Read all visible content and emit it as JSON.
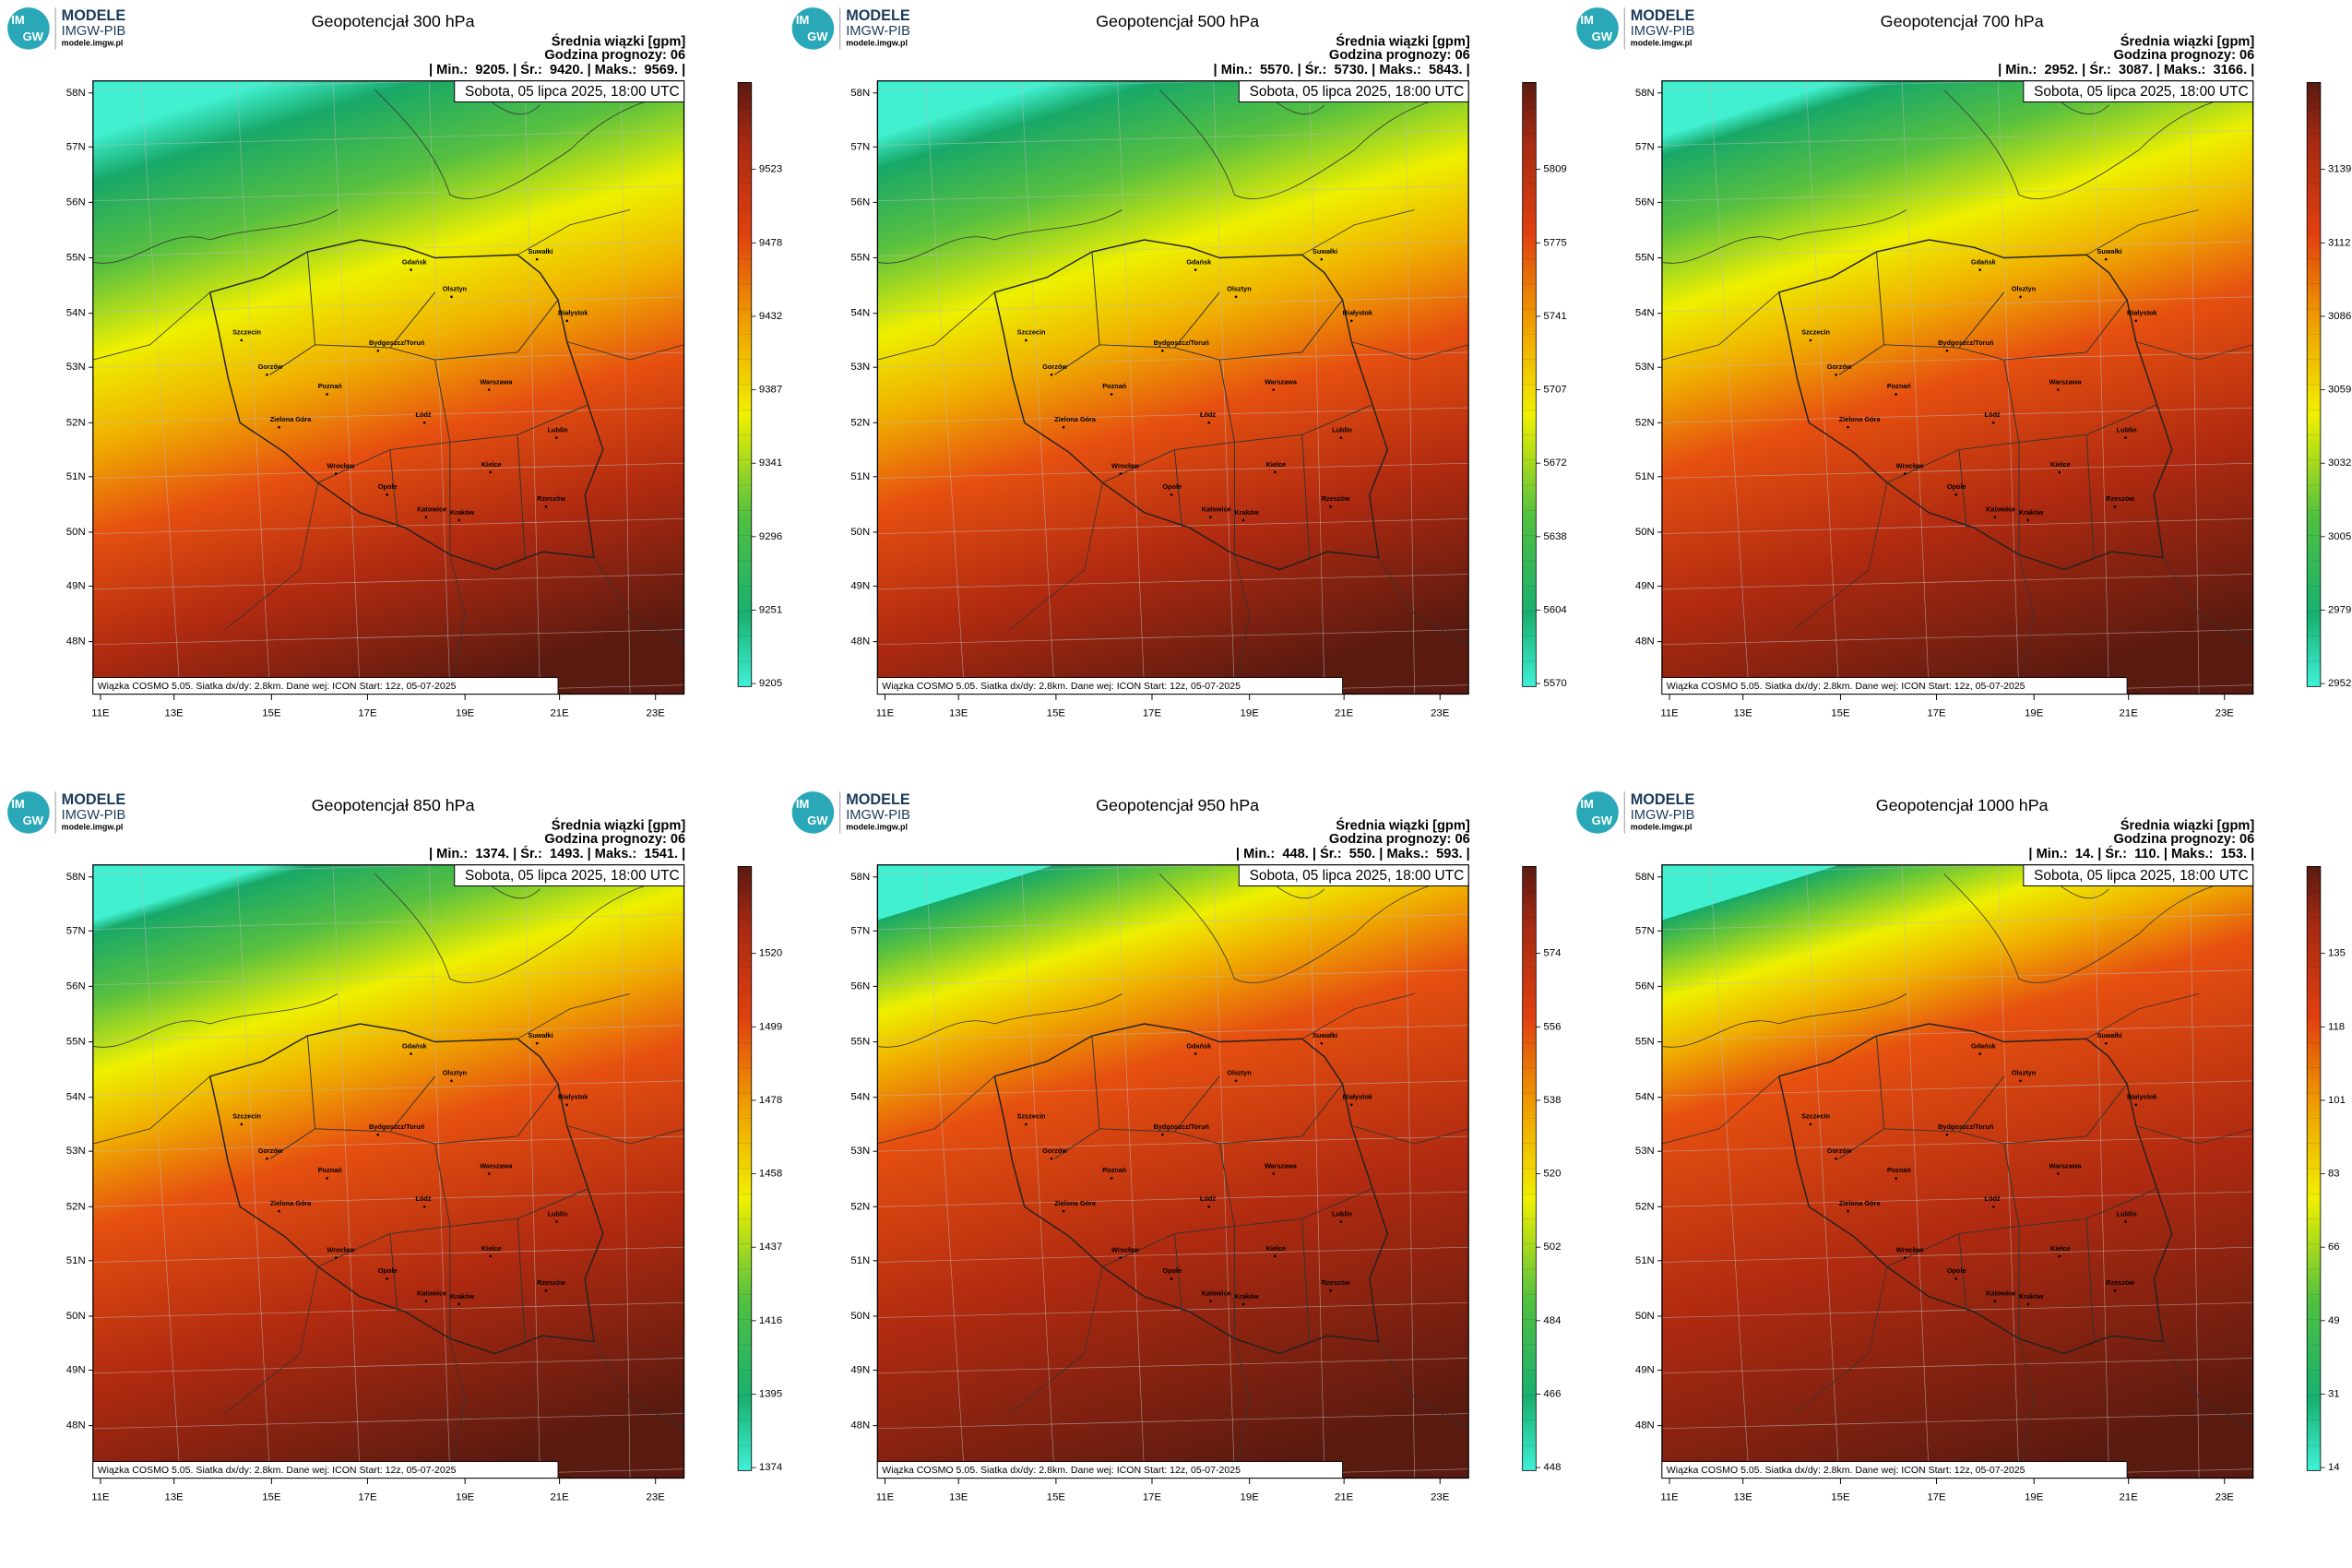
{
  "common": {
    "logo_mark": [
      "IM",
      "GW"
    ],
    "logo_title": "MODELE",
    "logo_org": "IMGW-PIB",
    "logo_url": "modele.imgw.pl",
    "header_1": "Średnia wiązki [gpm]",
    "header_2": "Godzina prognozy: 06",
    "date": "Sobota, 05 lipca 2025, 18:00 UTC",
    "footer": "Wiązka COSMO 5.05. Siatka dx/dy: 2.8km. Dane wej: ICON Start: 12z, 05-07-2025",
    "lat_labels": [
      "58N",
      "57N",
      "56N",
      "55N",
      "54N",
      "53N",
      "52N",
      "51N",
      "50N",
      "49N",
      "48N"
    ],
    "lon_labels": [
      "11E",
      "13E",
      "15E",
      "17E",
      "19E",
      "21E",
      "23E"
    ],
    "cities": [
      "Gdańsk",
      "Olsztyn",
      "Suwałki",
      "Białystok",
      "Szczecin",
      "Bydgoszcz/Toruń",
      "Gorzów",
      "Poznań",
      "Warszawa",
      "Zielona Góra",
      "Łódź",
      "Lublin",
      "Wrocław",
      "Kielce",
      "Opole",
      "Katowice",
      "Kraków",
      "Rzeszów"
    ]
  },
  "panels": [
    {
      "title": "Geopotencjał 300 hPa",
      "stats": "| Min.:  9205. | Śr.:  9420. | Maks.:  9569. |",
      "colorbar": [
        "9523",
        "9478",
        "9432",
        "9387",
        "9341",
        "9296",
        "9251",
        "9205"
      ]
    },
    {
      "title": "Geopotencjał 500 hPa",
      "stats": "| Min.:  5570. | Śr.:  5730. | Maks.:  5843. |",
      "colorbar": [
        "5809",
        "5775",
        "5741",
        "5707",
        "5672",
        "5638",
        "5604",
        "5570"
      ]
    },
    {
      "title": "Geopotencjał 700 hPa",
      "stats": "| Min.:  2952. | Śr.:  3087. | Maks.:  3166. |",
      "colorbar": [
        "3139",
        "3112",
        "3086",
        "3059",
        "3032",
        "3005",
        "2979",
        "2952"
      ]
    },
    {
      "title": "Geopotencjał 850 hPa",
      "stats": "| Min.:  1374. | Śr.:  1493. | Maks.:  1541. |",
      "colorbar": [
        "1520",
        "1499",
        "1478",
        "1458",
        "1437",
        "1416",
        "1395",
        "1374"
      ]
    },
    {
      "title": "Geopotencjał 950 hPa",
      "stats": "| Min.:  448. | Śr.:  550. | Maks.:  593. |",
      "colorbar": [
        "574",
        "556",
        "538",
        "520",
        "502",
        "484",
        "466",
        "448"
      ]
    },
    {
      "title": "Geopotencjał 1000 hPa",
      "stats": "| Min.:  14. | Śr.:  110. | Maks.:  153. |",
      "colorbar": [
        "135",
        "118",
        "101",
        "83",
        "66",
        "49",
        "31",
        "14"
      ]
    }
  ]
}
